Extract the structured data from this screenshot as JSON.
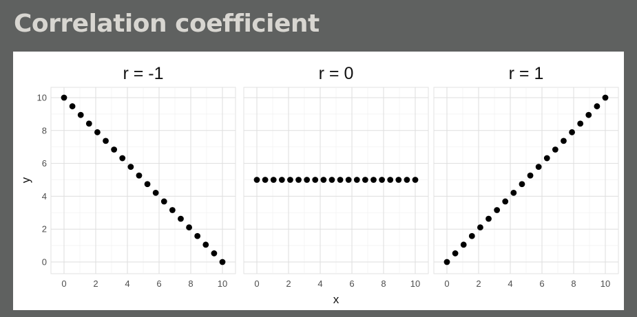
{
  "slide": {
    "title": "Correlation coefficient"
  },
  "chart_data": {
    "type": "scatter",
    "xlabel": "x",
    "ylabel": "y",
    "xlim": [
      0,
      10
    ],
    "ylim": [
      0,
      10
    ],
    "x_ticks": [
      "0",
      "2",
      "4",
      "6",
      "8",
      "10"
    ],
    "y_ticks": [
      "0",
      "2",
      "4",
      "6",
      "8",
      "10"
    ],
    "grid": true,
    "panels": [
      {
        "title": "r = -1",
        "x": [
          0,
          0.526,
          1.053,
          1.579,
          2.105,
          2.632,
          3.158,
          3.684,
          4.211,
          4.737,
          5.263,
          5.789,
          6.316,
          6.842,
          7.368,
          7.895,
          8.421,
          8.947,
          9.474,
          10
        ],
        "y": [
          10,
          9.474,
          8.947,
          8.421,
          7.895,
          7.368,
          6.842,
          6.316,
          5.789,
          5.263,
          4.737,
          4.211,
          3.684,
          3.158,
          2.632,
          2.105,
          1.579,
          1.053,
          0.526,
          0
        ]
      },
      {
        "title": "r = 0",
        "x": [
          0,
          0.526,
          1.053,
          1.579,
          2.105,
          2.632,
          3.158,
          3.684,
          4.211,
          4.737,
          5.263,
          5.789,
          6.316,
          6.842,
          7.368,
          7.895,
          8.421,
          8.947,
          9.474,
          10
        ],
        "y": [
          5,
          5,
          5,
          5,
          5,
          5,
          5,
          5,
          5,
          5,
          5,
          5,
          5,
          5,
          5,
          5,
          5,
          5,
          5,
          5
        ]
      },
      {
        "title": "r = 1",
        "x": [
          0,
          0.526,
          1.053,
          1.579,
          2.105,
          2.632,
          3.158,
          3.684,
          4.211,
          4.737,
          5.263,
          5.789,
          6.316,
          6.842,
          7.368,
          7.895,
          8.421,
          8.947,
          9.474,
          10
        ],
        "y": [
          0,
          0.526,
          1.053,
          1.579,
          2.105,
          2.632,
          3.158,
          3.684,
          4.211,
          4.737,
          5.263,
          5.789,
          6.316,
          6.842,
          7.368,
          7.895,
          8.421,
          8.947,
          9.474,
          10
        ]
      }
    ]
  }
}
